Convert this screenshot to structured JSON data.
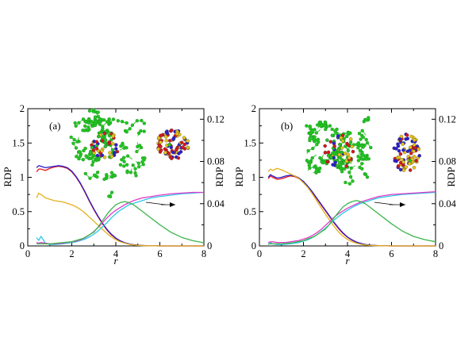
{
  "chart_data": [
    {
      "type": "line",
      "panel_label": "(a)",
      "xlabel": "r",
      "ylabel": "RDP",
      "y2label": "RDP",
      "xlim": [
        0,
        8
      ],
      "ylim": [
        0,
        2
      ],
      "y2lim": [
        0,
        0.13
      ],
      "xticks": [
        "0",
        "2",
        "4",
        "6",
        "8"
      ],
      "yticks": [
        "0",
        "0.5",
        "1",
        "1.5",
        "2"
      ],
      "y2ticks": [
        "0",
        "0.04",
        "0.08",
        "0.12"
      ],
      "series": [
        {
          "color": "#e8141e",
          "x": [
            0.4,
            0.5,
            0.6,
            0.8,
            1.0,
            1.2,
            1.4,
            1.6,
            1.8,
            2.0,
            2.2,
            2.4,
            2.6,
            2.8,
            3.0,
            3.2,
            3.4,
            3.6,
            3.8,
            4.0,
            4.2,
            4.4,
            4.6,
            4.8,
            5.0,
            5.2,
            5.4,
            5.6,
            5.8,
            6.0,
            6.5,
            7.0,
            7.5,
            8.0
          ],
          "y": [
            1.08,
            1.12,
            1.12,
            1.1,
            1.13,
            1.15,
            1.16,
            1.15,
            1.13,
            1.08,
            1.0,
            0.9,
            0.78,
            0.65,
            0.53,
            0.42,
            0.32,
            0.23,
            0.16,
            0.11,
            0.07,
            0.045,
            0.028,
            0.017,
            0.01,
            0.006,
            0.003,
            0.002,
            0.001,
            0,
            0,
            0,
            0,
            0
          ]
        },
        {
          "color": "#2a1ec8",
          "x": [
            0.4,
            0.5,
            0.6,
            0.8,
            1.0,
            1.2,
            1.4,
            1.6,
            1.8,
            2.0,
            2.2,
            2.4,
            2.6,
            2.8,
            3.0,
            3.2,
            3.4,
            3.6,
            3.8,
            4.0,
            4.2,
            4.4,
            4.6,
            4.8,
            5.0,
            5.2,
            5.4,
            5.6,
            5.8,
            6.0,
            6.5,
            7.0,
            7.5,
            8.0
          ],
          "y": [
            1.14,
            1.17,
            1.16,
            1.14,
            1.15,
            1.16,
            1.17,
            1.16,
            1.14,
            1.09,
            1.01,
            0.91,
            0.79,
            0.66,
            0.54,
            0.43,
            0.33,
            0.24,
            0.17,
            0.115,
            0.075,
            0.048,
            0.03,
            0.018,
            0.011,
            0.007,
            0.004,
            0.002,
            0.001,
            0,
            0,
            0,
            0,
            0
          ]
        },
        {
          "color": "#e3b11e",
          "x": [
            0.4,
            0.5,
            0.6,
            0.8,
            1.0,
            1.2,
            1.4,
            1.6,
            1.8,
            2.0,
            2.2,
            2.4,
            2.6,
            2.8,
            3.0,
            3.2,
            3.4,
            3.6,
            3.8,
            4.0,
            4.2,
            4.4,
            4.6,
            4.8,
            5.0,
            5.2,
            5.4,
            5.6,
            5.8,
            6.0,
            6.5,
            7.0,
            7.5,
            8.0
          ],
          "y": [
            0.7,
            0.77,
            0.75,
            0.7,
            0.68,
            0.66,
            0.65,
            0.64,
            0.62,
            0.6,
            0.57,
            0.53,
            0.48,
            0.42,
            0.36,
            0.3,
            0.24,
            0.18,
            0.13,
            0.09,
            0.06,
            0.04,
            0.025,
            0.015,
            0.009,
            0.005,
            0.003,
            0.002,
            0.001,
            0,
            0,
            0,
            0,
            0
          ]
        },
        {
          "color": "#2dc8e6",
          "x": [
            0.4,
            0.5,
            0.6,
            0.8,
            1.0,
            1.2,
            1.4,
            1.6,
            1.8,
            2.0,
            2.2,
            2.4,
            2.6,
            2.8,
            3.0,
            3.2,
            3.4,
            3.6,
            3.8,
            4.0,
            4.2,
            4.4,
            4.6,
            4.8,
            5.0,
            5.2,
            5.4,
            5.6,
            5.8,
            6.0,
            6.5,
            7.0,
            7.5,
            8.0
          ],
          "y": [
            0.12,
            0.08,
            0.14,
            0.04,
            0.02,
            0.02,
            0.025,
            0.03,
            0.04,
            0.05,
            0.06,
            0.08,
            0.1,
            0.13,
            0.17,
            0.22,
            0.28,
            0.34,
            0.41,
            0.47,
            0.52,
            0.56,
            0.6,
            0.62,
            0.64,
            0.66,
            0.68,
            0.7,
            0.71,
            0.72,
            0.74,
            0.76,
            0.77,
            0.78
          ]
        },
        {
          "color": "#e03ac8",
          "x": [
            0.4,
            0.5,
            0.6,
            0.8,
            1.0,
            1.2,
            1.4,
            1.6,
            1.8,
            2.0,
            2.2,
            2.4,
            2.6,
            2.8,
            3.0,
            3.2,
            3.4,
            3.6,
            3.8,
            4.0,
            4.2,
            4.4,
            4.6,
            4.8,
            5.0,
            5.2,
            5.4,
            5.6,
            5.8,
            6.0,
            6.5,
            7.0,
            7.5,
            8.0
          ],
          "y": [
            0.05,
            0.04,
            0.05,
            0.04,
            0.03,
            0.03,
            0.035,
            0.04,
            0.05,
            0.06,
            0.07,
            0.09,
            0.12,
            0.16,
            0.21,
            0.27,
            0.34,
            0.41,
            0.47,
            0.52,
            0.56,
            0.6,
            0.63,
            0.66,
            0.68,
            0.7,
            0.71,
            0.72,
            0.73,
            0.74,
            0.76,
            0.77,
            0.78,
            0.78
          ]
        },
        {
          "color": "#39b54a",
          "axis": "right",
          "x": [
            0.4,
            0.6,
            0.8,
            1.0,
            1.5,
            2.0,
            2.5,
            3.0,
            3.2,
            3.4,
            3.6,
            3.8,
            4.0,
            4.2,
            4.4,
            4.6,
            4.8,
            5.0,
            5.5,
            6.0,
            6.5,
            7.0,
            7.5,
            8.0
          ],
          "y": [
            0.002,
            0.002,
            0.002,
            0.002,
            0.003,
            0.004,
            0.007,
            0.013,
            0.018,
            0.024,
            0.03,
            0.035,
            0.039,
            0.041,
            0.042,
            0.041,
            0.039,
            0.036,
            0.028,
            0.02,
            0.013,
            0.008,
            0.005,
            0.003
          ]
        }
      ],
      "annotations": {
        "arrow": "pointing right to secondary axis"
      }
    },
    {
      "type": "line",
      "panel_label": "(b)",
      "xlabel": "r",
      "ylabel": "RDP",
      "y2label": "RDP",
      "xlim": [
        0,
        8
      ],
      "ylim": [
        0,
        2
      ],
      "y2lim": [
        0,
        0.13
      ],
      "xticks": [
        "0",
        "2",
        "4",
        "6",
        "8"
      ],
      "yticks": [
        "0",
        "0.5",
        "1",
        "1.5",
        "2"
      ],
      "y2ticks": [
        "0",
        "0.04",
        "0.08",
        "0.12"
      ],
      "series": [
        {
          "color": "#e8141e",
          "x": [
            0.4,
            0.5,
            0.6,
            0.8,
            1.0,
            1.2,
            1.4,
            1.6,
            1.8,
            2.0,
            2.2,
            2.4,
            2.6,
            2.8,
            3.0,
            3.2,
            3.4,
            3.6,
            3.8,
            4.0,
            4.2,
            4.4,
            4.6,
            4.8,
            5.0,
            5.2,
            5.4,
            5.6,
            5.8,
            6.0,
            6.5,
            7.0,
            7.5,
            8.0
          ],
          "y": [
            0.98,
            1.02,
            1.0,
            0.97,
            0.98,
            1.0,
            1.02,
            1.01,
            0.98,
            0.93,
            0.86,
            0.78,
            0.69,
            0.6,
            0.51,
            0.42,
            0.33,
            0.25,
            0.18,
            0.125,
            0.085,
            0.055,
            0.035,
            0.02,
            0.012,
            0.007,
            0.004,
            0.002,
            0.001,
            0,
            0,
            0,
            0,
            0
          ]
        },
        {
          "color": "#2a1ec8",
          "x": [
            0.4,
            0.5,
            0.6,
            0.8,
            1.0,
            1.2,
            1.4,
            1.6,
            1.8,
            2.0,
            2.2,
            2.4,
            2.6,
            2.8,
            3.0,
            3.2,
            3.4,
            3.6,
            3.8,
            4.0,
            4.2,
            4.4,
            4.6,
            4.8,
            5.0,
            5.2,
            5.4,
            5.6,
            5.8,
            6.0,
            6.5,
            7.0,
            7.5,
            8.0
          ],
          "y": [
            1.0,
            1.04,
            1.02,
            0.99,
            1.0,
            1.02,
            1.03,
            1.02,
            0.99,
            0.94,
            0.87,
            0.79,
            0.7,
            0.61,
            0.52,
            0.43,
            0.34,
            0.26,
            0.19,
            0.13,
            0.09,
            0.058,
            0.037,
            0.022,
            0.013,
            0.008,
            0.004,
            0.002,
            0.001,
            0,
            0,
            0,
            0,
            0
          ]
        },
        {
          "color": "#e3b11e",
          "x": [
            0.4,
            0.5,
            0.6,
            0.8,
            1.0,
            1.2,
            1.4,
            1.6,
            1.8,
            2.0,
            2.2,
            2.4,
            2.6,
            2.8,
            3.0,
            3.2,
            3.4,
            3.6,
            3.8,
            4.0,
            4.2,
            4.4,
            4.6,
            4.8,
            5.0,
            5.2,
            5.4,
            5.6,
            5.8,
            6.0,
            6.5,
            7.0,
            7.5,
            8.0
          ],
          "y": [
            1.08,
            1.12,
            1.1,
            1.13,
            1.11,
            1.08,
            1.05,
            1.02,
            0.98,
            0.92,
            0.85,
            0.76,
            0.66,
            0.56,
            0.46,
            0.37,
            0.28,
            0.2,
            0.14,
            0.095,
            0.062,
            0.04,
            0.025,
            0.015,
            0.009,
            0.005,
            0.003,
            0.002,
            0.001,
            0,
            0,
            0,
            0,
            0
          ]
        },
        {
          "color": "#2dc8e6",
          "x": [
            0.4,
            0.5,
            0.6,
            0.8,
            1.0,
            1.2,
            1.4,
            1.6,
            1.8,
            2.0,
            2.2,
            2.4,
            2.6,
            2.8,
            3.0,
            3.2,
            3.4,
            3.6,
            3.8,
            4.0,
            4.2,
            4.4,
            4.6,
            4.8,
            5.0,
            5.2,
            5.4,
            5.6,
            5.8,
            6.0,
            6.5,
            7.0,
            7.5,
            8.0
          ],
          "y": [
            0.02,
            0.05,
            0.03,
            0.02,
            0.02,
            0.025,
            0.03,
            0.04,
            0.05,
            0.07,
            0.09,
            0.12,
            0.16,
            0.21,
            0.26,
            0.32,
            0.38,
            0.43,
            0.48,
            0.52,
            0.56,
            0.59,
            0.62,
            0.64,
            0.66,
            0.68,
            0.7,
            0.71,
            0.72,
            0.73,
            0.75,
            0.76,
            0.77,
            0.78
          ]
        },
        {
          "color": "#e03ac8",
          "x": [
            0.4,
            0.5,
            0.6,
            0.8,
            1.0,
            1.2,
            1.4,
            1.6,
            1.8,
            2.0,
            2.2,
            2.4,
            2.6,
            2.8,
            3.0,
            3.2,
            3.4,
            3.6,
            3.8,
            4.0,
            4.2,
            4.4,
            4.6,
            4.8,
            5.0,
            5.2,
            5.4,
            5.6,
            5.8,
            6.0,
            6.5,
            7.0,
            7.5,
            8.0
          ],
          "y": [
            0.05,
            0.06,
            0.06,
            0.05,
            0.05,
            0.05,
            0.06,
            0.07,
            0.08,
            0.1,
            0.12,
            0.15,
            0.19,
            0.24,
            0.3,
            0.36,
            0.42,
            0.47,
            0.51,
            0.55,
            0.58,
            0.61,
            0.64,
            0.66,
            0.68,
            0.7,
            0.72,
            0.73,
            0.74,
            0.75,
            0.76,
            0.77,
            0.78,
            0.79
          ]
        },
        {
          "color": "#39b54a",
          "axis": "right",
          "x": [
            0.4,
            0.6,
            0.8,
            1.0,
            1.5,
            2.0,
            2.5,
            3.0,
            3.2,
            3.4,
            3.6,
            3.8,
            4.0,
            4.2,
            4.4,
            4.6,
            4.8,
            5.0,
            5.5,
            6.0,
            6.5,
            7.0,
            7.5,
            8.0
          ],
          "y": [
            0.002,
            0.002,
            0.002,
            0.002,
            0.003,
            0.005,
            0.009,
            0.016,
            0.021,
            0.027,
            0.032,
            0.037,
            0.04,
            0.042,
            0.043,
            0.042,
            0.04,
            0.037,
            0.029,
            0.021,
            0.014,
            0.009,
            0.006,
            0.004
          ]
        }
      ],
      "annotations": {
        "arrow": "pointing right to secondary axis"
      }
    }
  ],
  "molecule_palette": [
    "#22c322",
    "#e6c21a",
    "#d4171f",
    "#2b1fd0"
  ]
}
